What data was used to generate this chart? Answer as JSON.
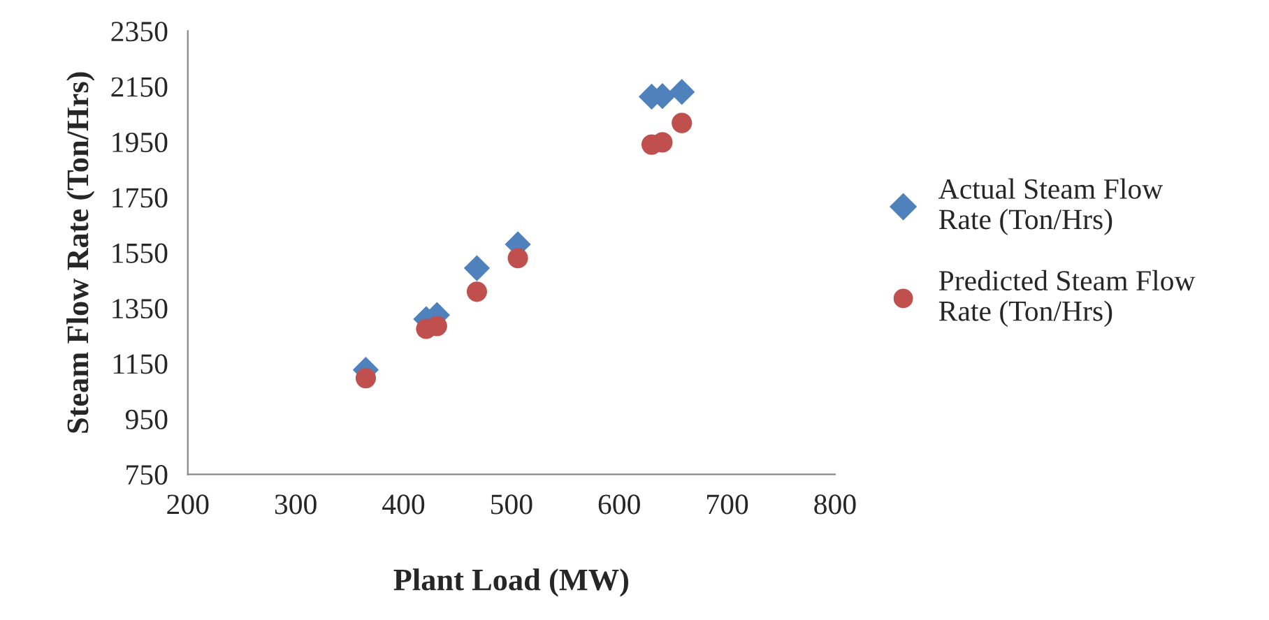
{
  "chart_data": {
    "type": "scatter",
    "xlabel": "Plant Load (MW)",
    "ylabel": "Steam Flow Rate (Ton/Hrs)",
    "xlim": [
      200,
      800
    ],
    "xticks": [
      200,
      300,
      400,
      500,
      600,
      700,
      800
    ],
    "ylim": [
      750,
      2350
    ],
    "yticks": [
      750,
      950,
      1150,
      1350,
      1550,
      1750,
      1950,
      2150,
      2350
    ],
    "legend": "right",
    "grid": false,
    "series": [
      {
        "name": "Actual Steam Flow Rate (Ton/Hrs)",
        "color": "#4f81bd",
        "marker": "diamond",
        "x": [
          365,
          421,
          431,
          468,
          506,
          630,
          640,
          658
        ],
        "values": [
          1127,
          1310,
          1325,
          1494,
          1580,
          2113,
          2115,
          2130
        ]
      },
      {
        "name": "Predicted Steam Flow Rate (Ton/Hrs)",
        "color": "#c0504d",
        "marker": "circle",
        "x": [
          365,
          421,
          431,
          468,
          506,
          630,
          640,
          658
        ],
        "values": [
          1097,
          1275,
          1285,
          1409,
          1530,
          1940,
          1948,
          2018
        ]
      }
    ]
  }
}
